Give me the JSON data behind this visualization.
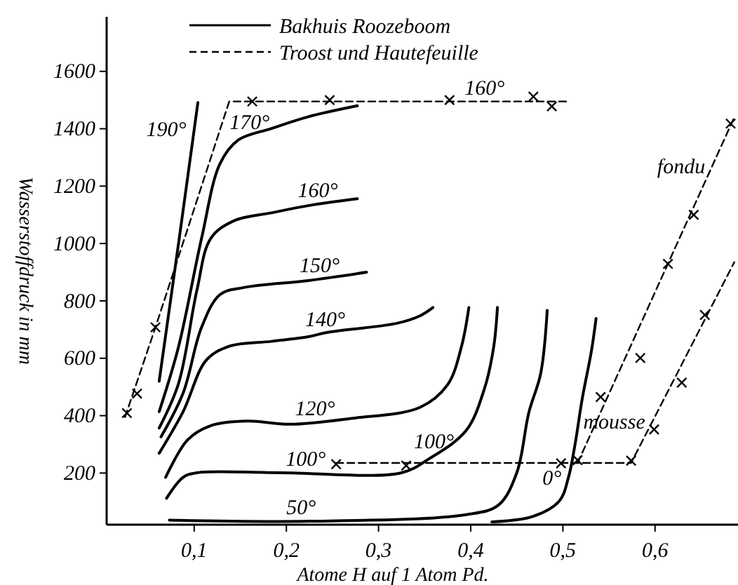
{
  "chart_data": {
    "type": "line",
    "xlabel": "Atome H auf 1 Atom Pd.",
    "ylabel": "Wasserstoffdruck in mm",
    "xlim": [
      0.005,
      0.69
    ],
    "ylim": [
      20,
      1790
    ],
    "xticks": [
      {
        "value": 0.1,
        "label": "0,1"
      },
      {
        "value": 0.2,
        "label": "0,2"
      },
      {
        "value": 0.3,
        "label": "0,3"
      },
      {
        "value": 0.4,
        "label": "0,4"
      },
      {
        "value": 0.5,
        "label": "0,5"
      },
      {
        "value": 0.6,
        "label": "0,6"
      }
    ],
    "yticks": [
      200,
      400,
      600,
      800,
      1000,
      1200,
      1400,
      1600
    ],
    "legend": "top",
    "grid": false,
    "series": [
      {
        "name": "Bakhuis Roozeboom",
        "color": "#000000",
        "line_style": "solid",
        "marker": "none",
        "x": [
          0.062,
          0.083,
          0.104
        ],
        "values": [
          520,
          1000,
          1491
        ]
      },
      {
        "color": "#000000",
        "line_style": "solid",
        "marker": "none",
        "x": [
          0.062,
          0.083,
          0.108,
          0.128,
          0.148,
          0.184,
          0.224,
          0.277
        ],
        "values": [
          414,
          640,
          1018,
          1278,
          1361,
          1401,
          1442,
          1480
        ]
      },
      {
        "color": "#000000",
        "line_style": "solid",
        "marker": "none",
        "x": [
          0.062,
          0.083,
          0.103,
          0.118,
          0.143,
          0.184,
          0.224,
          0.277
        ],
        "values": [
          357,
          512,
          838,
          1018,
          1079,
          1107,
          1132,
          1156
        ]
      },
      {
        "color": "#000000",
        "line_style": "solid",
        "marker": "none",
        "x": [
          0.064,
          0.088,
          0.108,
          0.128,
          0.153,
          0.224,
          0.287
        ],
        "values": [
          326,
          479,
          708,
          822,
          846,
          871,
          900
        ]
      },
      {
        "color": "#000000",
        "line_style": "solid",
        "marker": "none",
        "x": [
          0.062,
          0.088,
          0.113,
          0.138,
          0.184,
          0.224,
          0.244,
          0.32,
          0.345,
          0.359
        ],
        "values": [
          269,
          414,
          593,
          642,
          659,
          675,
          690,
          722,
          748,
          777
        ]
      },
      {
        "color": "#000000",
        "line_style": "solid",
        "marker": "none",
        "x": [
          0.069,
          0.093,
          0.118,
          0.158,
          0.204,
          0.269,
          0.345,
          0.375,
          0.39,
          0.398
        ],
        "values": [
          185,
          316,
          365,
          381,
          370,
          390,
          429,
          508,
          641,
          777
        ]
      },
      {
        "color": "#000000",
        "line_style": "solid",
        "marker": "none",
        "x": [
          0.07,
          0.088,
          0.103,
          0.194,
          0.325,
          0.355,
          0.395,
          0.415,
          0.425,
          0.429
        ],
        "values": [
          112,
          185,
          201,
          201,
          201,
          250,
          348,
          495,
          641,
          777
        ]
      },
      {
        "color": "#000000",
        "line_style": "solid",
        "marker": "none",
        "x": [
          0.073,
          0.224,
          0.395,
          0.43,
          0.45,
          0.463,
          0.476,
          0.483
        ],
        "values": [
          36,
          32,
          55,
          88,
          201,
          410,
          548,
          767
        ]
      },
      {
        "color": "#000000",
        "line_style": "solid",
        "marker": "none",
        "x": [
          0.423,
          0.466,
          0.496,
          0.506,
          0.513,
          0.521,
          0.531,
          0.536
        ],
        "values": [
          30,
          47,
          102,
          184,
          296,
          459,
          626,
          739
        ]
      },
      {
        "name": "Troost und Hautefeuille",
        "color": "#000000",
        "line_style": "dashed",
        "marker": "none",
        "x": [
          0.025,
          0.058,
          0.138,
          0.508
        ],
        "values": [
          395,
          708,
          1495,
          1495
        ]
      },
      {
        "color": "#000000",
        "line_style": "dashed",
        "marker": "none",
        "x": [
          0.254,
          0.574,
          0.686
        ],
        "values": [
          235,
          235,
          935
        ]
      },
      {
        "color": "#000000",
        "line_style": "dashed",
        "marker": "none",
        "x": [
          0.516,
          0.686
        ],
        "values": [
          235,
          1440
        ]
      },
      {
        "type": "scatter",
        "color": "#000000",
        "marker": "cross",
        "x": [
          0.027,
          0.038,
          0.058,
          0.163,
          0.247,
          0.377,
          0.468,
          0.488,
          0.254,
          0.33,
          0.498,
          0.516,
          0.574,
          0.541,
          0.584,
          0.614,
          0.642,
          0.682,
          0.599,
          0.629,
          0.654
        ],
        "values": [
          409,
          477,
          708,
          1495,
          1500,
          1500,
          1512,
          1478,
          231,
          226,
          234,
          245,
          243,
          465,
          601,
          929,
          1100,
          1418,
          352,
          515,
          751
        ]
      }
    ],
    "annotations": [
      {
        "text": "190°",
        "x": 0.099,
        "y": 1400
      },
      {
        "text": "170°",
        "x": 0.16,
        "y": 1375
      },
      {
        "text": "160°",
        "x": 0.234,
        "y": 1137
      },
      {
        "text": "150°",
        "x": 0.236,
        "y": 876
      },
      {
        "text": "140°",
        "x": 0.242,
        "y": 688
      },
      {
        "text": "120°",
        "x": 0.231,
        "y": 378
      },
      {
        "text": "100°",
        "x": 0.221,
        "y": 201
      },
      {
        "text": "100°",
        "x": 0.36,
        "y": 262
      },
      {
        "text": "50°",
        "x": 0.216,
        "y": 32
      },
      {
        "text": "0°",
        "x": 0.506,
        "y": 184
      },
      {
        "text": "160°",
        "x": 0.415,
        "y": 1495
      },
      {
        "text": "fondu",
        "x": 0.662,
        "y": 1270
      },
      {
        "text": "mousse",
        "x": 0.597,
        "y": 380
      }
    ]
  }
}
